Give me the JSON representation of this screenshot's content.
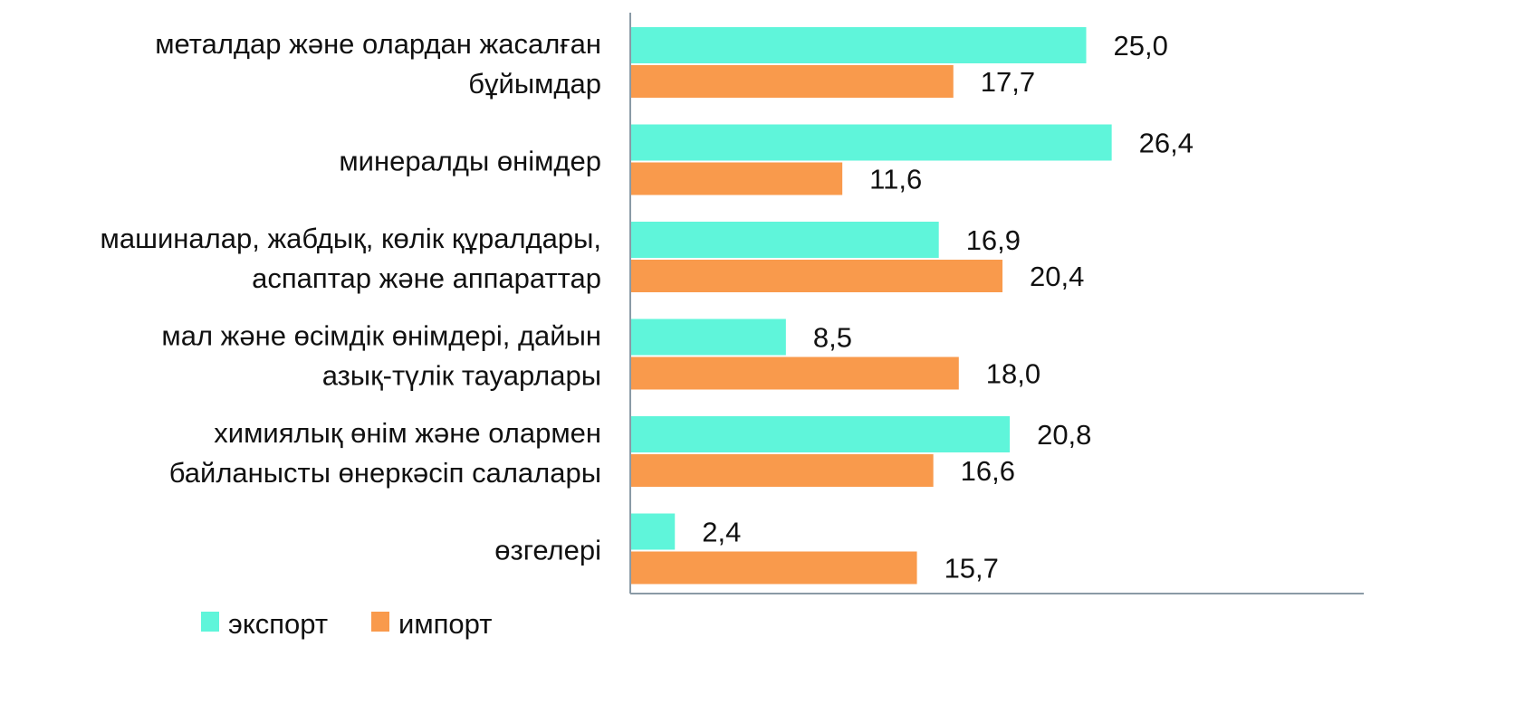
{
  "chart_data": {
    "type": "bar",
    "orientation": "horizontal",
    "categories": [
      [
        "металдар және олардан жасалған",
        "бұйымдар"
      ],
      [
        "минералды өнімдер"
      ],
      [
        "машиналар, жабдық, көлік құралдары,",
        "аспаптар және аппараттар"
      ],
      [
        "мал және өсімдік өнімдері, дайын",
        "азық-түлік тауарлары"
      ],
      [
        "химиялық өнім және олармен",
        "байланысты өнеркәсіп салалары"
      ],
      [
        "өзгелері"
      ]
    ],
    "series": [
      {
        "name": "экспорт",
        "color": "#5ff5da",
        "values": [
          25.0,
          26.4,
          16.9,
          8.5,
          20.8,
          2.4
        ],
        "labels": [
          "25,0",
          "26,4",
          "16,9",
          "8,5",
          "20,8",
          "2,4"
        ]
      },
      {
        "name": "импорт",
        "color": "#f99a4c",
        "values": [
          17.7,
          11.6,
          20.4,
          18.0,
          16.6,
          15.7
        ],
        "labels": [
          "17,7",
          "11,6",
          "20,4",
          "18,0",
          "16,6",
          "15,7"
        ]
      }
    ],
    "xlim": [
      0,
      40
    ],
    "grid": false,
    "legend": "bottom-left",
    "xlabel": "",
    "ylabel": ""
  }
}
